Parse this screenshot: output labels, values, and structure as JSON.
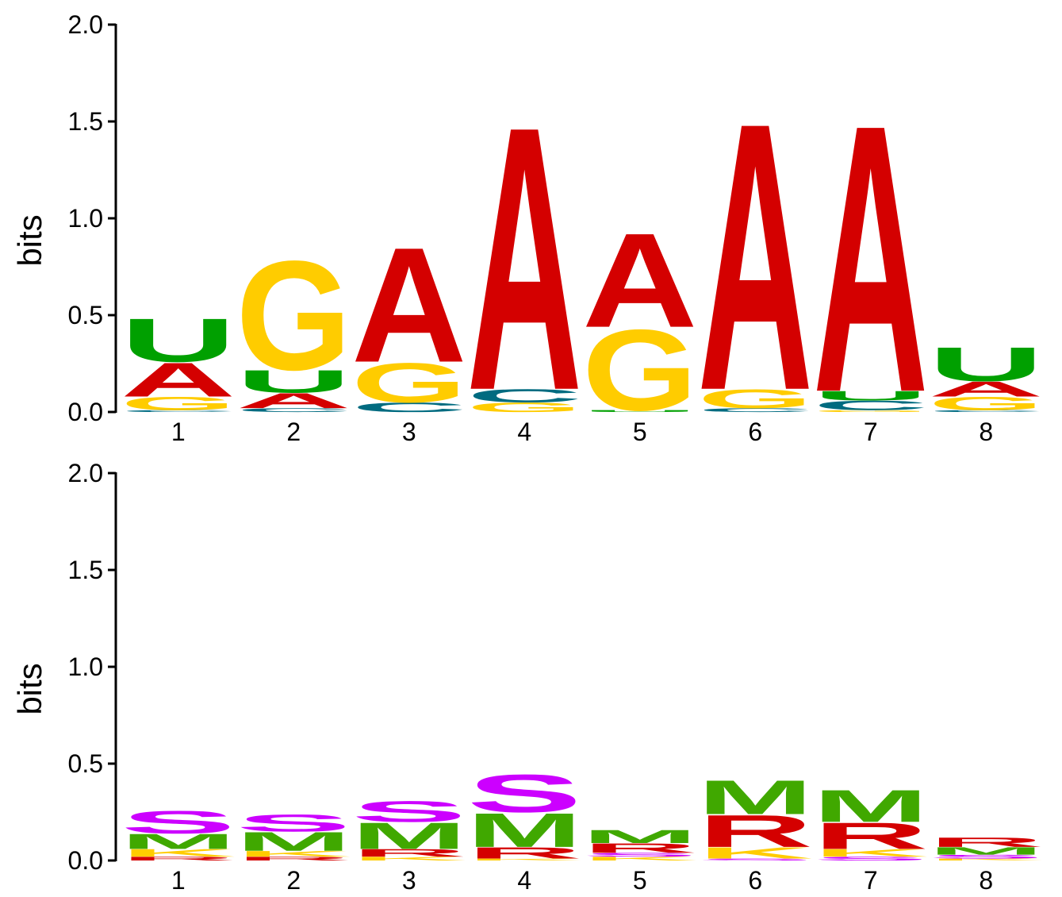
{
  "colors": {
    "A": "#d40000",
    "C": "#006b80",
    "G": "#ffcc00",
    "U": "#00a000",
    "S": "#cc00ff",
    "M": "#40a800",
    "K": "#ffcc00",
    "R": "#d40000"
  },
  "chart_data": [
    {
      "type": "sequence-logo",
      "ylabel": "bits",
      "ylim": [
        0,
        2
      ],
      "yticks": [
        "0.0",
        "0.5",
        "1.0",
        "1.5",
        "2.0"
      ],
      "positions": [
        "1",
        "2",
        "3",
        "4",
        "5",
        "6",
        "7",
        "8"
      ],
      "stacks": [
        [
          {
            "letter": "C",
            "bits": 0.01
          },
          {
            "letter": "G",
            "bits": 0.07
          },
          {
            "letter": "A",
            "bits": 0.18
          },
          {
            "letter": "U",
            "bits": 0.23
          }
        ],
        [
          {
            "letter": "C",
            "bits": 0.02
          },
          {
            "letter": "A",
            "bits": 0.08
          },
          {
            "letter": "U",
            "bits": 0.12
          },
          {
            "letter": "G",
            "bits": 0.58
          }
        ],
        [
          {
            "letter": "C",
            "bits": 0.05
          },
          {
            "letter": "G",
            "bits": 0.21
          },
          {
            "letter": "A",
            "bits": 0.61
          }
        ],
        [
          {
            "letter": "G",
            "bits": 0.05
          },
          {
            "letter": "C",
            "bits": 0.07
          },
          {
            "letter": "A",
            "bits": 1.4
          }
        ],
        [
          {
            "letter": "U",
            "bits": 0.01
          },
          {
            "letter": "G",
            "bits": 0.43
          },
          {
            "letter": "A",
            "bits": 0.5
          }
        ],
        [
          {
            "letter": "C",
            "bits": 0.02
          },
          {
            "letter": "G",
            "bits": 0.1
          },
          {
            "letter": "A",
            "bits": 1.42
          }
        ],
        [
          {
            "letter": "G",
            "bits": 0.01
          },
          {
            "letter": "C",
            "bits": 0.05
          },
          {
            "letter": "U",
            "bits": 0.05
          },
          {
            "letter": "A",
            "bits": 1.42
          }
        ],
        [
          {
            "letter": "C",
            "bits": 0.01
          },
          {
            "letter": "G",
            "bits": 0.07
          },
          {
            "letter": "A",
            "bits": 0.08
          },
          {
            "letter": "U",
            "bits": 0.18
          }
        ]
      ]
    },
    {
      "type": "sequence-logo",
      "ylabel": "bits",
      "ylim": [
        0,
        2
      ],
      "yticks": [
        "0.0",
        "0.5",
        "1.0",
        "1.5",
        "2.0"
      ],
      "positions": [
        "1",
        "2",
        "3",
        "4",
        "5",
        "6",
        "7",
        "8"
      ],
      "stacks": [
        [
          {
            "letter": "R",
            "bits": 0.02
          },
          {
            "letter": "K",
            "bits": 0.04
          },
          {
            "letter": "M",
            "bits": 0.08
          },
          {
            "letter": "S",
            "bits": 0.12
          }
        ],
        [
          {
            "letter": "R",
            "bits": 0.02
          },
          {
            "letter": "K",
            "bits": 0.03
          },
          {
            "letter": "M",
            "bits": 0.1
          },
          {
            "letter": "S",
            "bits": 0.09
          }
        ],
        [
          {
            "letter": "K",
            "bits": 0.02
          },
          {
            "letter": "R",
            "bits": 0.04
          },
          {
            "letter": "M",
            "bits": 0.14
          },
          {
            "letter": "S",
            "bits": 0.11
          }
        ],
        [
          {
            "letter": "K",
            "bits": 0.01
          },
          {
            "letter": "R",
            "bits": 0.06
          },
          {
            "letter": "M",
            "bits": 0.18
          },
          {
            "letter": "S",
            "bits": 0.2
          }
        ],
        [
          {
            "letter": "K",
            "bits": 0.02
          },
          {
            "letter": "S",
            "bits": 0.02
          },
          {
            "letter": "R",
            "bits": 0.05
          },
          {
            "letter": "M",
            "bits": 0.07
          }
        ],
        [
          {
            "letter": "S",
            "bits": 0.01
          },
          {
            "letter": "K",
            "bits": 0.06
          },
          {
            "letter": "R",
            "bits": 0.17
          },
          {
            "letter": "M",
            "bits": 0.18
          }
        ],
        [
          {
            "letter": "S",
            "bits": 0.02
          },
          {
            "letter": "K",
            "bits": 0.04
          },
          {
            "letter": "R",
            "bits": 0.14
          },
          {
            "letter": "M",
            "bits": 0.17
          }
        ],
        [
          {
            "letter": "K",
            "bits": 0.01
          },
          {
            "letter": "S",
            "bits": 0.02
          },
          {
            "letter": "M",
            "bits": 0.04
          },
          {
            "letter": "R",
            "bits": 0.05
          }
        ]
      ]
    }
  ]
}
